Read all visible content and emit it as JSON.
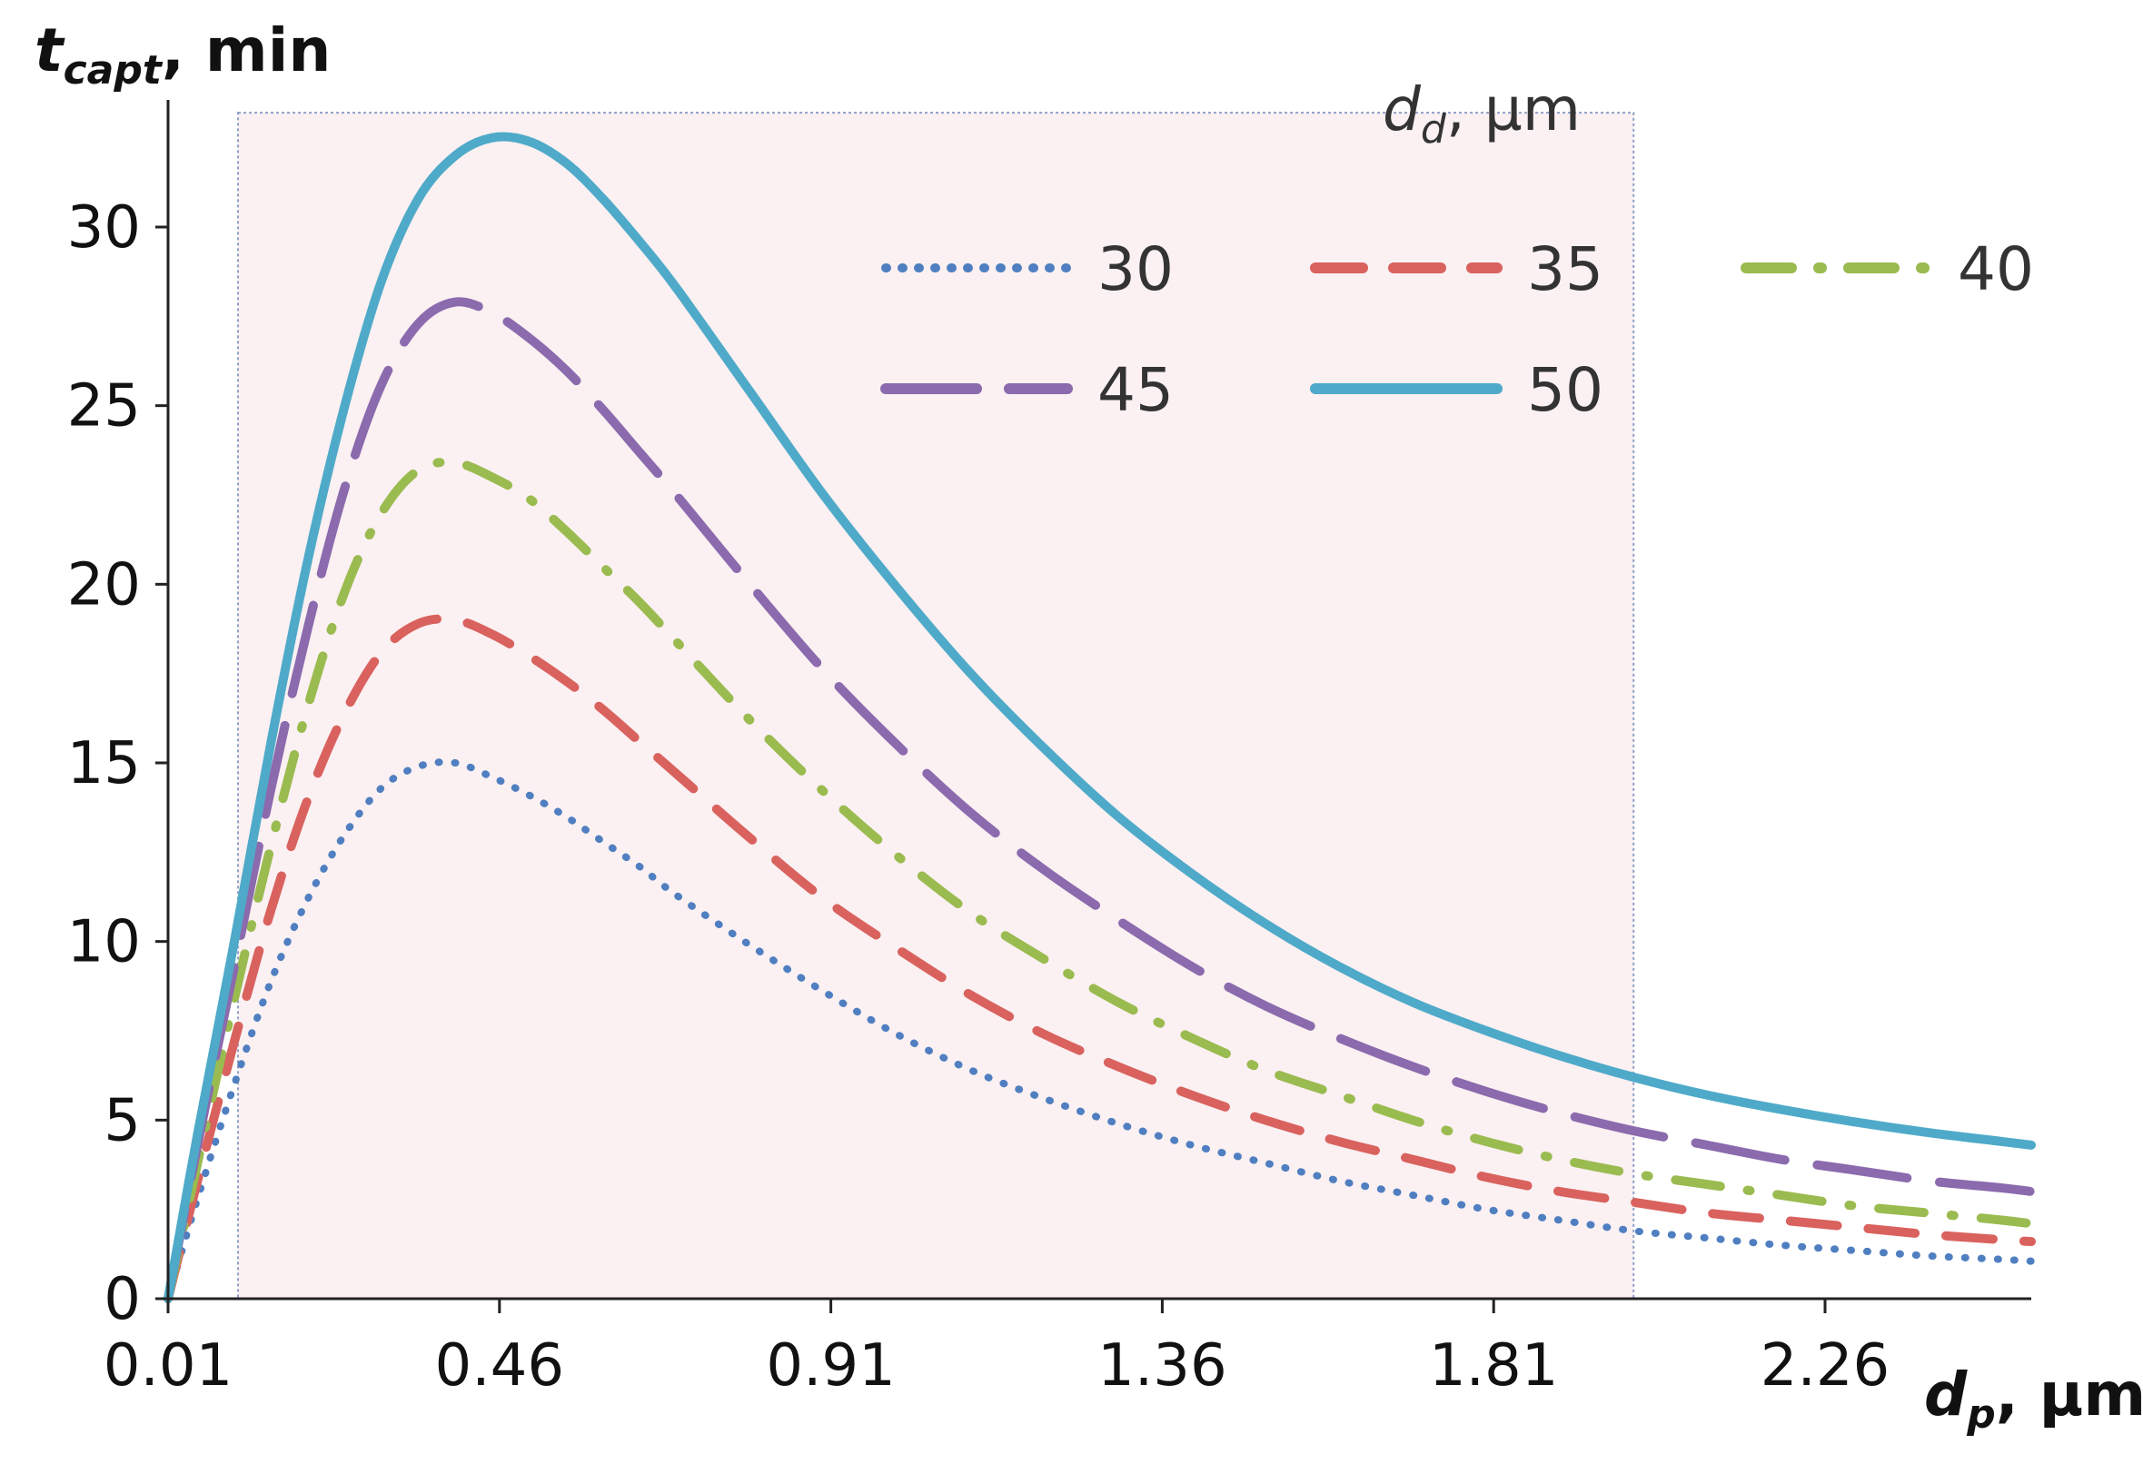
{
  "chart_data": {
    "type": "line",
    "title": "",
    "ylabel": {
      "main": "t",
      "sub": "capt",
      "unit": ", min"
    },
    "xlabel": {
      "main": "d",
      "sub": "p",
      "unit": ", µm"
    },
    "legend_title": {
      "main": "d",
      "sub": "d",
      "unit": ", µm"
    },
    "legend_position": "top-right",
    "xlim": [
      0.01,
      2.54
    ],
    "ylim": [
      0,
      32
    ],
    "x_ticks": [
      0.01,
      0.46,
      0.91,
      1.36,
      1.81,
      2.26
    ],
    "x_tick_labels": [
      "0.01",
      "0.46",
      "0.91",
      "1.36",
      "1.81",
      "2.26"
    ],
    "y_ticks": [
      0,
      5,
      10,
      15,
      20,
      25,
      30
    ],
    "y_tick_labels": [
      "0",
      "5",
      "10",
      "15",
      "20",
      "25",
      "30"
    ],
    "highlight_region": {
      "x_range": [
        0.105,
        2.0
      ],
      "y_range": [
        0,
        33.2
      ]
    },
    "x": [
      0.01,
      0.05,
      0.1,
      0.15,
      0.2,
      0.25,
      0.3,
      0.35,
      0.4,
      0.45,
      0.5,
      0.55,
      0.6,
      0.65,
      0.7,
      0.8,
      0.9,
      1.0,
      1.1,
      1.2,
      1.3,
      1.4,
      1.5,
      1.6,
      1.7,
      1.8,
      1.9,
      2.0,
      2.1,
      2.2,
      2.3,
      2.4,
      2.5,
      2.54
    ],
    "series": [
      {
        "name": "30",
        "color": "#4f7fc0",
        "style": "dotted",
        "values": [
          0,
          2.8,
          6.0,
          8.9,
          11.2,
          13.0,
          14.3,
          14.9,
          15.0,
          14.6,
          14.1,
          13.5,
          12.8,
          12.1,
          11.3,
          9.9,
          8.6,
          7.4,
          6.4,
          5.6,
          4.9,
          4.3,
          3.8,
          3.3,
          2.9,
          2.5,
          2.2,
          1.9,
          1.7,
          1.5,
          1.35,
          1.2,
          1.1,
          1.05
        ]
      },
      {
        "name": "35",
        "color": "#d9625e",
        "style": "dashed",
        "values": [
          0,
          3.3,
          7.2,
          10.9,
          14.0,
          16.4,
          18.1,
          18.9,
          19.0,
          18.6,
          18.0,
          17.3,
          16.5,
          15.6,
          14.7,
          12.9,
          11.2,
          9.8,
          8.5,
          7.4,
          6.5,
          5.7,
          5.0,
          4.4,
          3.9,
          3.4,
          3.0,
          2.7,
          2.4,
          2.2,
          2.0,
          1.8,
          1.65,
          1.6
        ]
      },
      {
        "name": "40",
        "color": "#9abb4f",
        "style": "dashdot",
        "values": [
          0,
          3.8,
          8.4,
          12.7,
          16.6,
          19.8,
          22.0,
          23.2,
          23.4,
          23.0,
          22.4,
          21.5,
          20.5,
          19.5,
          18.4,
          16.2,
          14.2,
          12.4,
          10.8,
          9.5,
          8.3,
          7.3,
          6.4,
          5.7,
          5.0,
          4.4,
          3.9,
          3.5,
          3.2,
          2.9,
          2.6,
          2.4,
          2.2,
          2.1
        ]
      },
      {
        "name": "45",
        "color": "#8b6aad",
        "style": "longdash",
        "values": [
          0,
          4.3,
          9.3,
          14.3,
          18.8,
          22.7,
          25.6,
          27.3,
          27.9,
          27.6,
          26.9,
          26.0,
          24.9,
          23.7,
          22.5,
          20.0,
          17.6,
          15.5,
          13.6,
          12.0,
          10.6,
          9.3,
          8.2,
          7.3,
          6.5,
          5.8,
          5.2,
          4.7,
          4.3,
          3.9,
          3.6,
          3.3,
          3.1,
          3.0
        ]
      },
      {
        "name": "50",
        "color": "#4eaac8",
        "style": "solid",
        "values": [
          0,
          4.6,
          10.0,
          15.6,
          20.7,
          25.0,
          28.5,
          30.8,
          32.0,
          32.5,
          32.4,
          31.8,
          30.8,
          29.6,
          28.3,
          25.4,
          22.5,
          19.9,
          17.5,
          15.4,
          13.5,
          11.9,
          10.5,
          9.3,
          8.3,
          7.5,
          6.8,
          6.2,
          5.7,
          5.3,
          4.95,
          4.65,
          4.4,
          4.3
        ]
      }
    ]
  }
}
